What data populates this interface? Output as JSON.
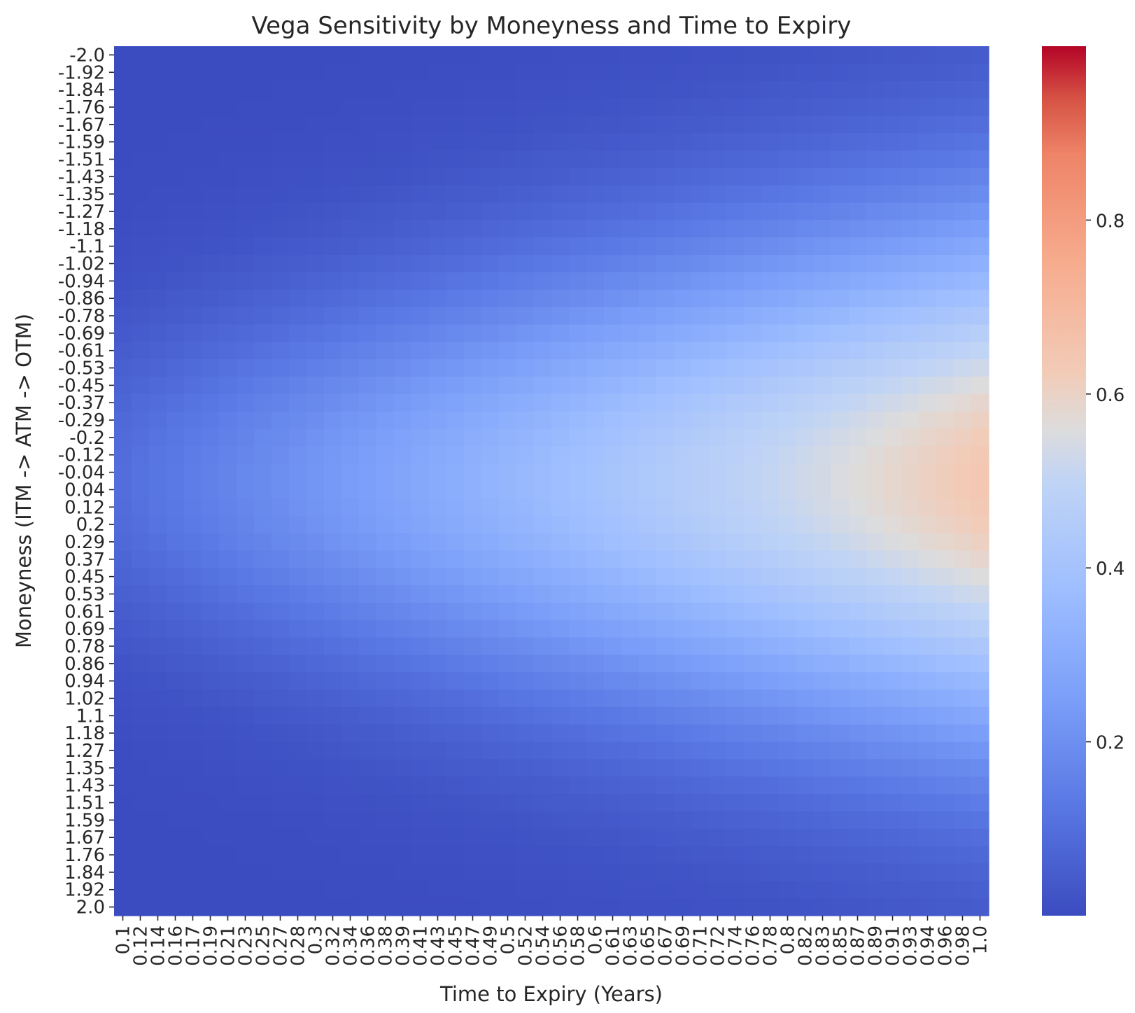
{
  "chart_data": {
    "type": "heatmap",
    "title": "Vega Sensitivity by Moneyness and Time to Expiry",
    "xlabel": "Time to Expiry (Years)",
    "ylabel": "Moneyness (ITM -> ATM -> OTM)",
    "colormap": "coolwarm",
    "colorbar": {
      "ticks": [
        "0.2",
        "0.4",
        "0.6",
        "0.8"
      ],
      "vmin": 0.0,
      "vmax": 1.0
    },
    "x_tick_labels": [
      "0.1",
      "0.12",
      "0.14",
      "0.16",
      "0.17",
      "0.19",
      "0.21",
      "0.23",
      "0.25",
      "0.27",
      "0.28",
      "0.3",
      "0.32",
      "0.34",
      "0.36",
      "0.38",
      "0.39",
      "0.41",
      "0.43",
      "0.45",
      "0.47",
      "0.49",
      "0.5",
      "0.52",
      "0.54",
      "0.56",
      "0.58",
      "0.6",
      "0.61",
      "0.63",
      "0.65",
      "0.67",
      "0.69",
      "0.71",
      "0.72",
      "0.74",
      "0.76",
      "0.78",
      "0.8",
      "0.82",
      "0.83",
      "0.85",
      "0.87",
      "0.89",
      "0.91",
      "0.93",
      "0.94",
      "0.96",
      "0.98",
      "1.0"
    ],
    "y_tick_labels": [
      "-2.0",
      "-1.92",
      "-1.84",
      "-1.76",
      "-1.67",
      "-1.59",
      "-1.51",
      "-1.43",
      "-1.35",
      "-1.27",
      "-1.18",
      "-1.1",
      "-1.02",
      "-0.94",
      "-0.86",
      "-0.78",
      "-0.69",
      "-0.61",
      "-0.53",
      "-0.45",
      "-0.37",
      "-0.29",
      "-0.2",
      "-0.12",
      "-0.04",
      "0.04",
      "0.12",
      "0.2",
      "0.29",
      "0.37",
      "0.45",
      "0.53",
      "0.61",
      "0.69",
      "0.78",
      "0.86",
      "0.94",
      "1.02",
      "1.1",
      "1.18",
      "1.27",
      "1.35",
      "1.43",
      "1.51",
      "1.59",
      "1.67",
      "1.76",
      "1.84",
      "1.92",
      "2.0"
    ],
    "x_range": [
      0.1,
      1.0
    ],
    "y_range": [
      -2.0,
      2.0
    ],
    "grid": false,
    "value_model": "z = (0.04 + 0.6*T) * exp(-m^2 / (0.4 + 1.1*T)), with m = moneyness and T = time to expiry in years"
  }
}
